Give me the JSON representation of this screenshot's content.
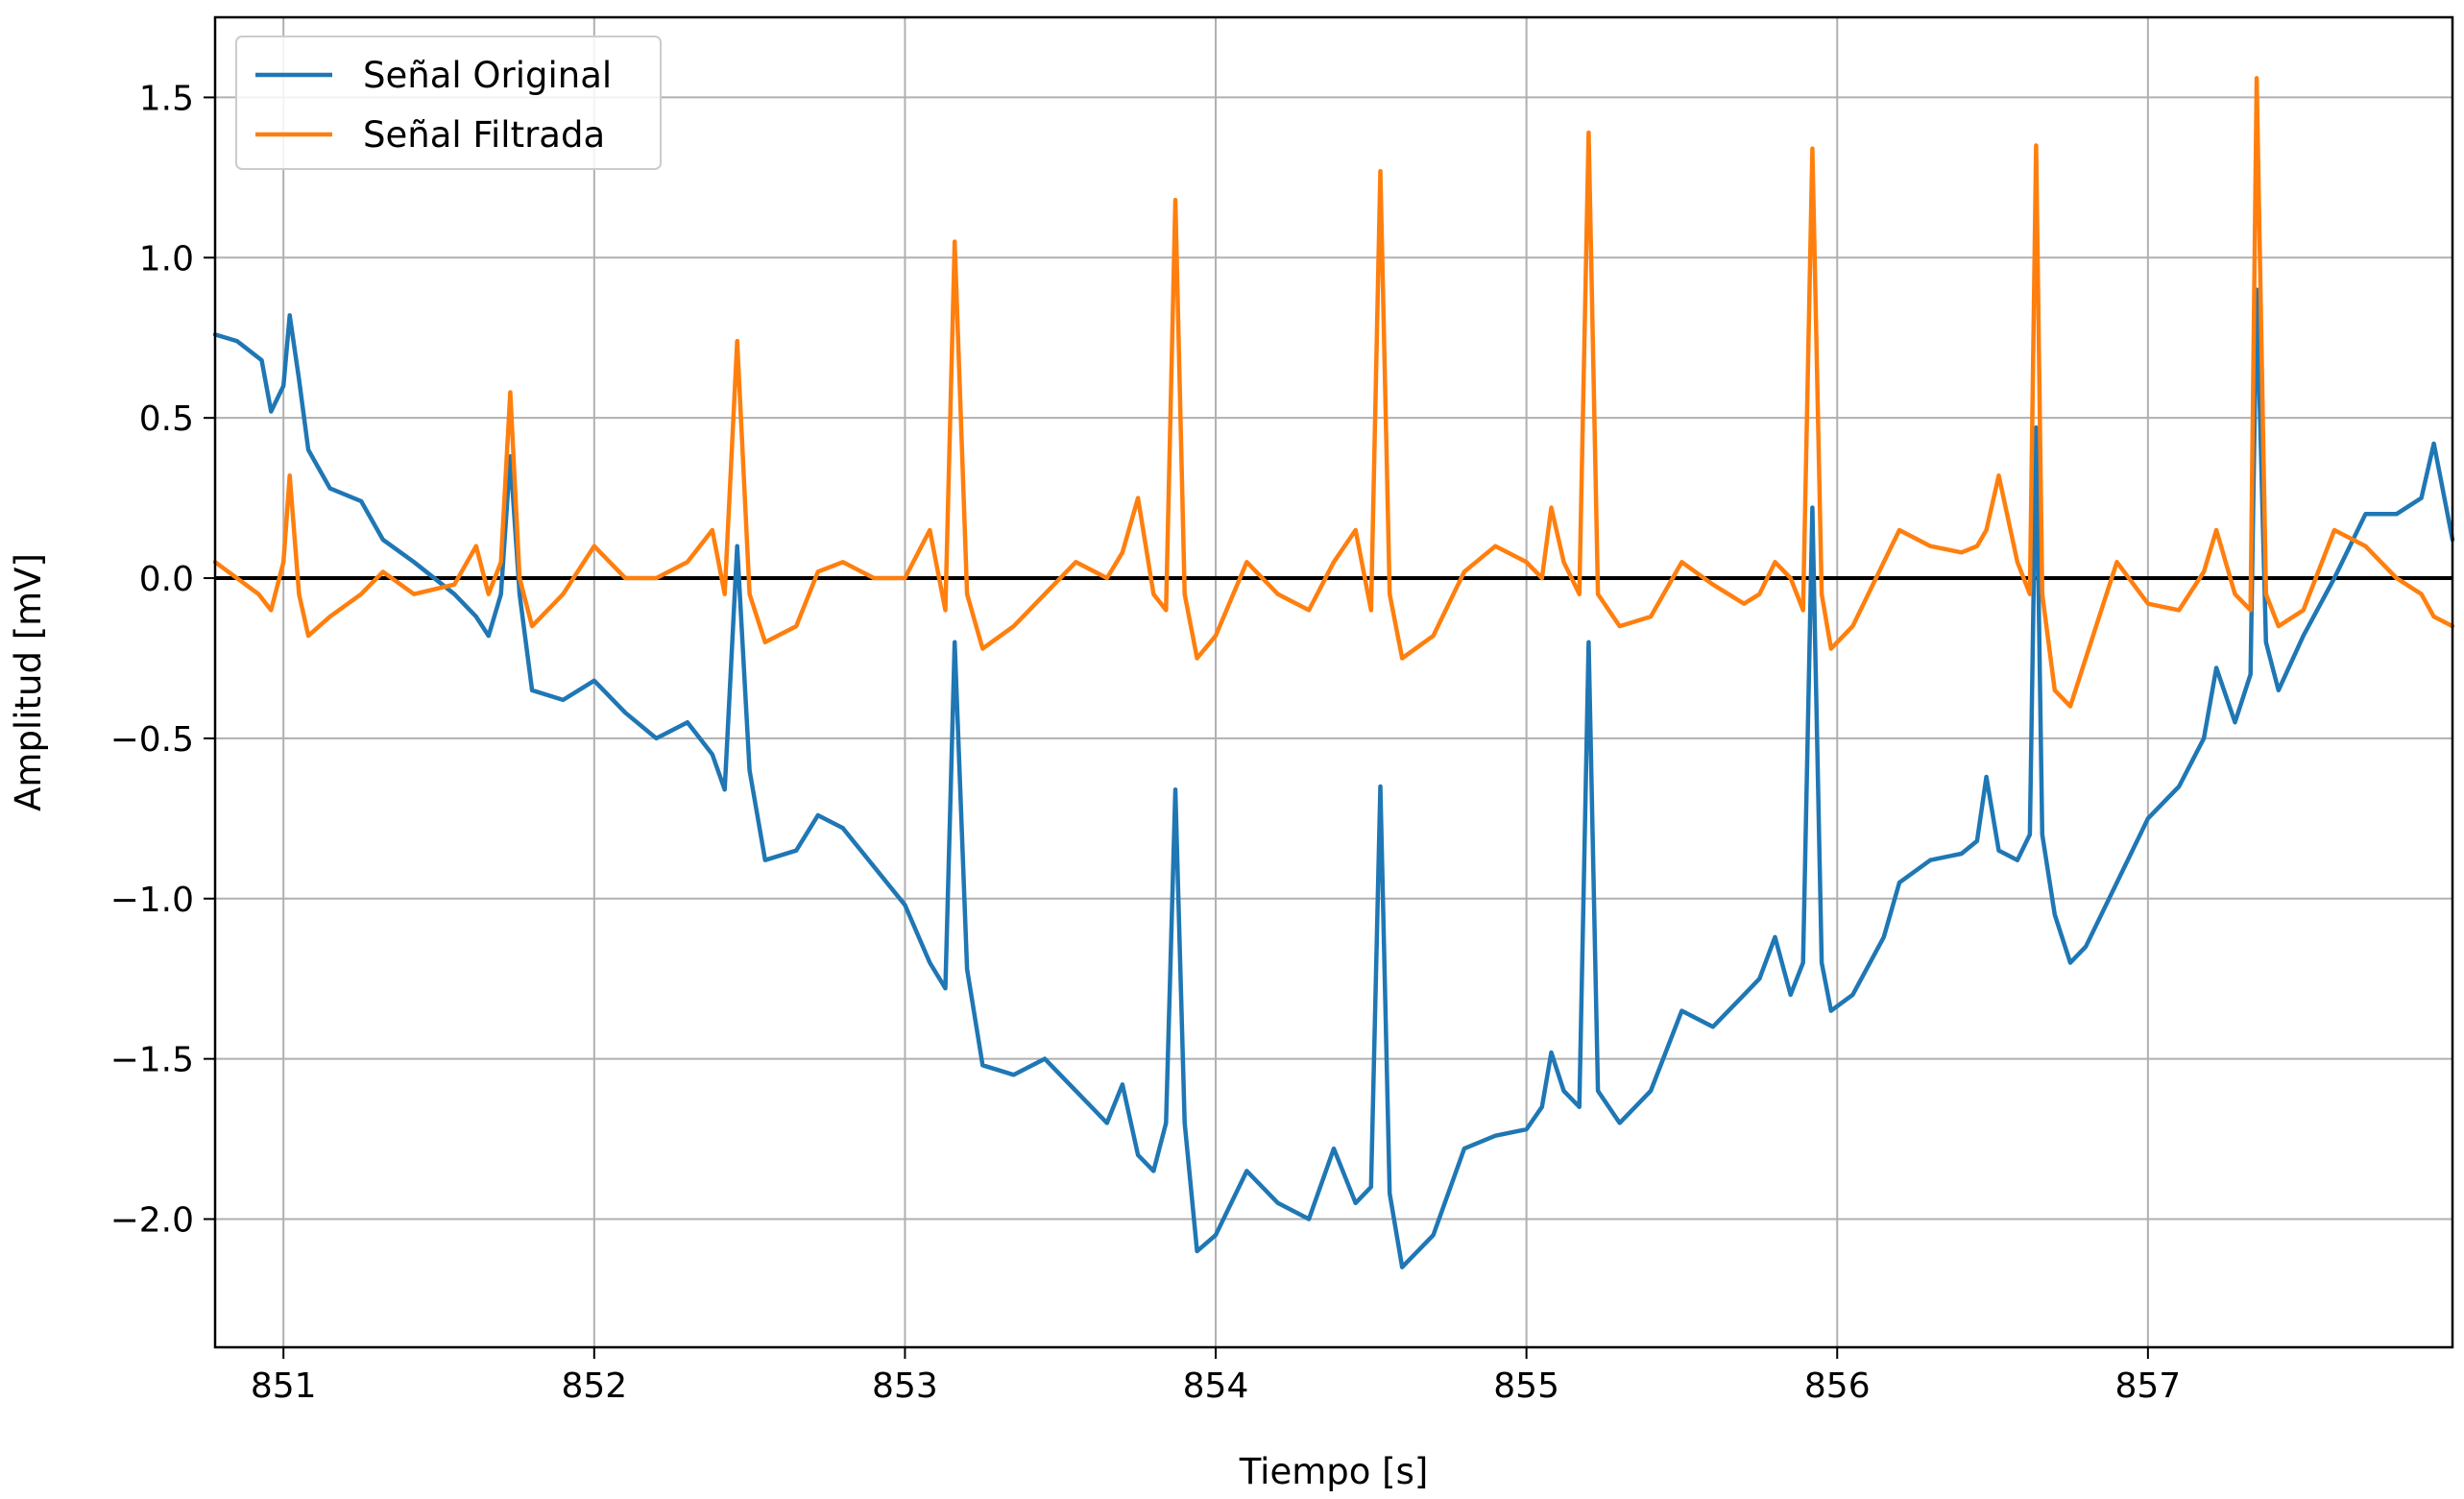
{
  "chart_data": {
    "type": "line",
    "title": "",
    "xlabel": "Tiempo [s]",
    "ylabel": "Amplitud [mV]",
    "xlim": [
      850.78,
      857.98
    ],
    "ylim": [
      -2.4,
      1.75
    ],
    "x_ticks": [
      851,
      852,
      853,
      854,
      855,
      856,
      857
    ],
    "x_tick_labels": [
      "851",
      "852",
      "853",
      "854",
      "855",
      "856",
      "857"
    ],
    "y_ticks": [
      1.5,
      1.0,
      0.5,
      0.0,
      -0.5,
      -1.0,
      -1.5,
      -2.0
    ],
    "y_tick_labels": [
      "1.5",
      "1.0",
      "0.5",
      "0.0",
      "−0.5",
      "−1.0",
      "−1.5",
      "−2.0"
    ],
    "grid": true,
    "legend_position": "top-left",
    "reference_line": {
      "y": 0.0,
      "color": "#000000"
    },
    "series": [
      {
        "name": "Señal Original",
        "color": "#1f77b4",
        "x": [
          850.78,
          850.85,
          850.93,
          850.96,
          851.0,
          851.02,
          851.05,
          851.08,
          851.15,
          851.25,
          851.32,
          851.42,
          851.55,
          851.62,
          851.66,
          851.7,
          851.73,
          851.76,
          851.8,
          851.9,
          852.0,
          852.1,
          852.2,
          852.3,
          852.38,
          852.42,
          852.46,
          852.5,
          852.55,
          852.65,
          852.72,
          852.8,
          852.9,
          853.0,
          853.08,
          853.13,
          853.16,
          853.2,
          853.25,
          853.35,
          853.45,
          853.55,
          853.65,
          853.7,
          853.75,
          853.8,
          853.84,
          853.87,
          853.9,
          853.94,
          854.0,
          854.1,
          854.2,
          854.3,
          854.38,
          854.45,
          854.5,
          854.53,
          854.56,
          854.6,
          854.7,
          854.8,
          854.9,
          855.0,
          855.05,
          855.08,
          855.12,
          855.17,
          855.2,
          855.23,
          855.3,
          855.4,
          855.5,
          855.6,
          855.7,
          855.75,
          855.8,
          855.85,
          855.89,
          855.92,
          855.95,
          855.98,
          856.05,
          856.15,
          856.2,
          856.3,
          856.4,
          856.45,
          856.48,
          856.52,
          856.58,
          856.62,
          856.64,
          856.66,
          856.7,
          856.75,
          856.8,
          856.9,
          857.0,
          857.1,
          857.18,
          857.22,
          857.28,
          857.33,
          857.35,
          857.38,
          857.42,
          857.5,
          857.6,
          857.7,
          857.8,
          857.88,
          857.92,
          857.98
        ],
        "y": [
          0.76,
          0.74,
          0.68,
          0.52,
          0.6,
          0.82,
          0.62,
          0.4,
          0.28,
          0.24,
          0.12,
          0.05,
          -0.05,
          -0.12,
          -0.18,
          -0.05,
          0.38,
          -0.05,
          -0.35,
          -0.38,
          -0.32,
          -0.42,
          -0.5,
          -0.45,
          -0.55,
          -0.66,
          0.1,
          -0.6,
          -0.88,
          -0.85,
          -0.74,
          -0.78,
          -0.9,
          -1.02,
          -1.2,
          -1.28,
          -0.2,
          -1.22,
          -1.52,
          -1.55,
          -1.5,
          -1.6,
          -1.7,
          -1.58,
          -1.8,
          -1.85,
          -1.7,
          -0.66,
          -1.7,
          -2.1,
          -2.05,
          -1.85,
          -1.95,
          -2.0,
          -1.78,
          -1.95,
          -1.9,
          -0.65,
          -1.92,
          -2.15,
          -2.05,
          -1.78,
          -1.74,
          -1.72,
          -1.65,
          -1.48,
          -1.6,
          -1.65,
          -0.2,
          -1.6,
          -1.7,
          -1.6,
          -1.35,
          -1.4,
          -1.3,
          -1.25,
          -1.12,
          -1.3,
          -1.2,
          0.22,
          -1.2,
          -1.35,
          -1.3,
          -1.12,
          -0.95,
          -0.88,
          -0.86,
          -0.82,
          -0.62,
          -0.85,
          -0.88,
          -0.8,
          0.47,
          -0.8,
          -1.05,
          -1.2,
          -1.15,
          -0.95,
          -0.75,
          -0.65,
          -0.5,
          -0.28,
          -0.45,
          -0.3,
          0.9,
          -0.2,
          -0.35,
          -0.18,
          0.0,
          0.2,
          0.2,
          0.25,
          0.42,
          0.12
        ]
      },
      {
        "name": "Señal Filtrada",
        "color": "#ff7f0e",
        "x": [
          850.78,
          850.85,
          850.92,
          850.96,
          851.0,
          851.02,
          851.05,
          851.08,
          851.15,
          851.25,
          851.32,
          851.42,
          851.55,
          851.62,
          851.66,
          851.7,
          851.73,
          851.76,
          851.8,
          851.9,
          852.0,
          852.1,
          852.2,
          852.3,
          852.38,
          852.42,
          852.46,
          852.5,
          852.55,
          852.65,
          852.72,
          852.8,
          852.9,
          853.0,
          853.08,
          853.13,
          853.16,
          853.2,
          853.25,
          853.35,
          853.45,
          853.55,
          853.65,
          853.7,
          853.75,
          853.8,
          853.84,
          853.87,
          853.9,
          853.94,
          854.0,
          854.1,
          854.2,
          854.3,
          854.38,
          854.45,
          854.5,
          854.53,
          854.56,
          854.6,
          854.7,
          854.8,
          854.9,
          855.0,
          855.05,
          855.08,
          855.12,
          855.17,
          855.2,
          855.23,
          855.3,
          855.4,
          855.5,
          855.6,
          855.7,
          855.75,
          855.8,
          855.85,
          855.89,
          855.92,
          855.95,
          855.98,
          856.05,
          856.15,
          856.2,
          856.3,
          856.4,
          856.45,
          856.48,
          856.52,
          856.58,
          856.62,
          856.64,
          856.66,
          856.7,
          856.75,
          856.8,
          856.9,
          857.0,
          857.1,
          857.18,
          857.22,
          857.28,
          857.33,
          857.35,
          857.38,
          857.42,
          857.5,
          857.6,
          857.7,
          857.8,
          857.88,
          857.92,
          857.98
        ],
        "y": [
          0.05,
          0.0,
          -0.05,
          -0.1,
          0.05,
          0.32,
          -0.05,
          -0.18,
          -0.12,
          -0.05,
          0.02,
          -0.05,
          -0.02,
          0.1,
          -0.05,
          0.05,
          0.58,
          0.0,
          -0.15,
          -0.05,
          0.1,
          0.0,
          0.0,
          0.05,
          0.15,
          -0.05,
          0.74,
          -0.05,
          -0.2,
          -0.15,
          0.02,
          0.05,
          0.0,
          0.0,
          0.15,
          -0.1,
          1.05,
          -0.05,
          -0.22,
          -0.15,
          -0.05,
          0.05,
          0.0,
          0.08,
          0.25,
          -0.05,
          -0.1,
          1.18,
          -0.05,
          -0.25,
          -0.18,
          0.05,
          -0.05,
          -0.1,
          0.05,
          0.15,
          -0.1,
          1.27,
          -0.05,
          -0.25,
          -0.18,
          0.02,
          0.1,
          0.05,
          0.0,
          0.22,
          0.05,
          -0.05,
          1.39,
          -0.05,
          -0.15,
          -0.12,
          0.05,
          -0.02,
          -0.08,
          -0.05,
          0.05,
          0.0,
          -0.1,
          1.34,
          -0.05,
          -0.22,
          -0.15,
          0.05,
          0.15,
          0.1,
          0.08,
          0.1,
          0.15,
          0.32,
          0.05,
          -0.05,
          1.35,
          -0.05,
          -0.35,
          -0.4,
          -0.25,
          0.05,
          -0.08,
          -0.1,
          0.02,
          0.15,
          -0.05,
          -0.1,
          1.56,
          -0.05,
          -0.15,
          -0.1,
          0.15,
          0.1,
          0.0,
          -0.05,
          -0.12,
          -0.15
        ]
      }
    ]
  }
}
